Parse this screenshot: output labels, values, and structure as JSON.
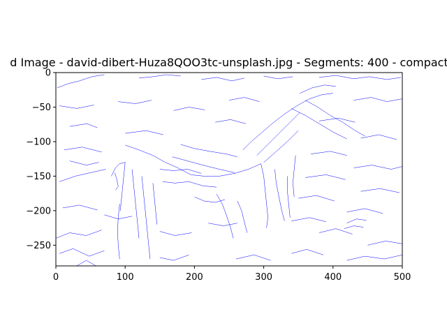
{
  "chart_data": {
    "type": "line",
    "title": "d Image - david-dibert-Huza8QOO3tc-unsplash.jpg - Segments: 400 - compact",
    "xlabel": "",
    "ylabel": "",
    "xlim": [
      0,
      500
    ],
    "ylim": [
      -280,
      0
    ],
    "xticks": [
      0,
      100,
      200,
      300,
      400,
      500
    ],
    "yticks": [
      0,
      -50,
      -100,
      -150,
      -200,
      -250
    ],
    "xtick_labels": [
      "0",
      "100",
      "200",
      "300",
      "400",
      "500"
    ],
    "ytick_labels": [
      "0",
      "−50",
      "−100",
      "−150",
      "−200",
      "−250"
    ],
    "grid": false,
    "line_color": "#0000ff",
    "series": [
      {
        "values": [
          [
            2,
            -22
          ],
          [
            18,
            -16
          ],
          [
            34,
            -12
          ],
          [
            52,
            -6
          ],
          [
            70,
            -3
          ]
        ]
      },
      {
        "values": [
          [
            120,
            -8
          ],
          [
            140,
            -6
          ],
          [
            160,
            -3
          ],
          [
            180,
            -5
          ]
        ]
      },
      {
        "values": [
          [
            210,
            -10
          ],
          [
            232,
            -7
          ],
          [
            254,
            -12
          ],
          [
            272,
            -8
          ]
        ]
      },
      {
        "values": [
          [
            300,
            -5
          ],
          [
            320,
            -9
          ],
          [
            342,
            -6
          ]
        ]
      },
      {
        "values": [
          [
            380,
            -7
          ],
          [
            404,
            -4
          ],
          [
            430,
            -9
          ],
          [
            452,
            -6
          ],
          [
            478,
            -10
          ],
          [
            498,
            -7
          ]
        ]
      },
      {
        "values": [
          [
            5,
            -48
          ],
          [
            30,
            -52
          ],
          [
            55,
            -47
          ]
        ]
      },
      {
        "values": [
          [
            90,
            -42
          ],
          [
            115,
            -45
          ],
          [
            138,
            -40
          ]
        ]
      },
      {
        "values": [
          [
            170,
            -55
          ],
          [
            192,
            -50
          ],
          [
            215,
            -54
          ]
        ]
      },
      {
        "values": [
          [
            430,
            -40
          ],
          [
            455,
            -36
          ],
          [
            478,
            -42
          ],
          [
            500,
            -38
          ]
        ]
      },
      {
        "values": [
          [
            20,
            -78
          ],
          [
            45,
            -74
          ],
          [
            60,
            -80
          ]
        ]
      },
      {
        "values": [
          [
            100,
            -88
          ],
          [
            130,
            -84
          ],
          [
            155,
            -90
          ]
        ]
      },
      {
        "values": [
          [
            380,
            -70
          ],
          [
            408,
            -66
          ],
          [
            432,
            -72
          ]
        ]
      },
      {
        "values": [
          [
            440,
            -95
          ],
          [
            466,
            -90
          ],
          [
            492,
            -97
          ]
        ]
      },
      {
        "values": [
          [
            12,
            -112
          ],
          [
            38,
            -108
          ],
          [
            66,
            -115
          ]
        ]
      },
      {
        "values": [
          [
            368,
            -118
          ],
          [
            396,
            -114
          ],
          [
            420,
            -120
          ]
        ]
      },
      {
        "values": [
          [
            430,
            -138
          ],
          [
            456,
            -134
          ],
          [
            484,
            -140
          ],
          [
            500,
            -136
          ]
        ]
      },
      {
        "values": [
          [
            5,
            -158
          ],
          [
            28,
            -150
          ],
          [
            50,
            -145
          ],
          [
            72,
            -140
          ]
        ]
      },
      {
        "values": [
          [
            360,
            -152
          ],
          [
            390,
            -148
          ],
          [
            418,
            -155
          ]
        ]
      },
      {
        "values": [
          [
            440,
            -172
          ],
          [
            468,
            -168
          ],
          [
            496,
            -174
          ]
        ]
      },
      {
        "values": [
          [
            10,
            -196
          ],
          [
            34,
            -192
          ],
          [
            60,
            -199
          ]
        ]
      },
      {
        "values": [
          [
            350,
            -182
          ],
          [
            376,
            -178
          ],
          [
            402,
            -186
          ]
        ]
      },
      {
        "values": [
          [
            420,
            -202
          ],
          [
            446,
            -197
          ],
          [
            472,
            -204
          ]
        ]
      },
      {
        "values": [
          [
            340,
            -215
          ],
          [
            366,
            -210
          ],
          [
            390,
            -216
          ]
        ]
      },
      {
        "values": [
          [
            0,
            -240
          ],
          [
            20,
            -232
          ],
          [
            44,
            -236
          ],
          [
            66,
            -228
          ]
        ]
      },
      {
        "values": [
          [
            380,
            -232
          ],
          [
            404,
            -226
          ],
          [
            428,
            -234
          ]
        ]
      },
      {
        "values": [
          [
            450,
            -250
          ],
          [
            476,
            -244
          ],
          [
            500,
            -248
          ]
        ]
      },
      {
        "values": [
          [
            5,
            -262
          ],
          [
            25,
            -255
          ],
          [
            48,
            -266
          ],
          [
            70,
            -258
          ]
        ]
      },
      {
        "values": [
          [
            340,
            -262
          ],
          [
            362,
            -256
          ],
          [
            386,
            -264
          ]
        ]
      },
      {
        "values": [
          [
            420,
            -272
          ],
          [
            446,
            -266
          ],
          [
            474,
            -270
          ],
          [
            500,
            -264
          ]
        ]
      },
      {
        "values": [
          [
            30,
            -280
          ],
          [
            44,
            -272
          ],
          [
            58,
            -280
          ]
        ]
      },
      {
        "values": [
          [
            150,
            -268
          ],
          [
            170,
            -272
          ],
          [
            192,
            -264
          ]
        ]
      },
      {
        "values": [
          [
            260,
            -270
          ],
          [
            286,
            -264
          ],
          [
            310,
            -272
          ]
        ]
      },
      {
        "values": [
          [
            100,
            -105
          ],
          [
            120,
            -112
          ],
          [
            140,
            -120
          ],
          [
            158,
            -130
          ],
          [
            176,
            -138
          ],
          [
            195,
            -148
          ],
          [
            214,
            -150
          ]
        ]
      },
      {
        "values": [
          [
            180,
            -104
          ],
          [
            200,
            -110
          ],
          [
            222,
            -114
          ],
          [
            246,
            -118
          ],
          [
            262,
            -122
          ]
        ]
      },
      {
        "values": [
          [
            168,
            -122
          ],
          [
            190,
            -128
          ],
          [
            212,
            -134
          ],
          [
            236,
            -140
          ],
          [
            258,
            -145
          ]
        ]
      },
      {
        "values": [
          [
            214,
            -150
          ],
          [
            236,
            -150
          ],
          [
            258,
            -146
          ],
          [
            278,
            -140
          ],
          [
            296,
            -132
          ]
        ]
      },
      {
        "values": [
          [
            270,
            -112
          ],
          [
            282,
            -100
          ],
          [
            296,
            -88
          ],
          [
            312,
            -74
          ],
          [
            330,
            -60
          ]
        ]
      },
      {
        "values": [
          [
            290,
            -120
          ],
          [
            306,
            -104
          ],
          [
            322,
            -88
          ],
          [
            338,
            -72
          ],
          [
            352,
            -58
          ]
        ]
      },
      {
        "values": [
          [
            300,
            -130
          ],
          [
            316,
            -116
          ],
          [
            334,
            -100
          ],
          [
            350,
            -84
          ]
        ]
      },
      {
        "values": [
          [
            330,
            -60
          ],
          [
            348,
            -48
          ],
          [
            366,
            -38
          ],
          [
            384,
            -32
          ],
          [
            400,
            -30
          ]
        ]
      },
      {
        "values": [
          [
            360,
            -40
          ],
          [
            378,
            -50
          ],
          [
            396,
            -62
          ],
          [
            414,
            -72
          ],
          [
            432,
            -84
          ],
          [
            446,
            -92
          ]
        ]
      },
      {
        "values": [
          [
            340,
            -52
          ],
          [
            360,
            -62
          ],
          [
            380,
            -74
          ],
          [
            400,
            -86
          ],
          [
            420,
            -96
          ]
        ]
      },
      {
        "values": [
          [
            352,
            -30
          ],
          [
            370,
            -22
          ],
          [
            388,
            -18
          ],
          [
            404,
            -20
          ]
        ]
      },
      {
        "values": [
          [
            296,
            -132
          ],
          [
            300,
            -150
          ],
          [
            302,
            -170
          ],
          [
            304,
            -190
          ],
          [
            306,
            -210
          ],
          [
            304,
            -225
          ]
        ]
      },
      {
        "values": [
          [
            316,
            -140
          ],
          [
            318,
            -160
          ],
          [
            322,
            -180
          ],
          [
            326,
            -200
          ],
          [
            330,
            -215
          ]
        ]
      },
      {
        "values": [
          [
            334,
            -150
          ],
          [
            334,
            -170
          ],
          [
            336,
            -190
          ],
          [
            338,
            -210
          ]
        ]
      },
      {
        "values": [
          [
            346,
            -120
          ],
          [
            344,
            -140
          ],
          [
            342,
            -160
          ],
          [
            344,
            -180
          ]
        ]
      },
      {
        "values": [
          [
            100,
            -130
          ],
          [
            98,
            -150
          ],
          [
            96,
            -170
          ],
          [
            94,
            -190
          ],
          [
            93,
            -200
          ]
        ]
      },
      {
        "values": [
          [
            110,
            -140
          ],
          [
            112,
            -160
          ],
          [
            114,
            -180
          ],
          [
            116,
            -200
          ],
          [
            118,
            -220
          ],
          [
            120,
            -240
          ]
        ]
      },
      {
        "values": [
          [
            124,
            -150
          ],
          [
            126,
            -170
          ],
          [
            128,
            -190
          ],
          [
            130,
            -210
          ],
          [
            132,
            -230
          ],
          [
            134,
            -250
          ],
          [
            136,
            -270
          ]
        ]
      },
      {
        "values": [
          [
            92,
            -190
          ],
          [
            90,
            -210
          ],
          [
            89,
            -230
          ],
          [
            90,
            -250
          ],
          [
            92,
            -270
          ]
        ]
      },
      {
        "values": [
          [
            140,
            -160
          ],
          [
            142,
            -180
          ],
          [
            144,
            -200
          ],
          [
            146,
            -220
          ]
        ]
      },
      {
        "values": [
          [
            80,
            -150
          ],
          [
            86,
            -138
          ],
          [
            92,
            -132
          ],
          [
            100,
            -130
          ]
        ]
      },
      {
        "values": [
          [
            85,
            -145
          ],
          [
            88,
            -155
          ],
          [
            90,
            -165
          ],
          [
            86,
            -170
          ]
        ]
      },
      {
        "values": [
          [
            150,
            -140
          ],
          [
            170,
            -142
          ],
          [
            190,
            -140
          ],
          [
            210,
            -146
          ]
        ]
      },
      {
        "values": [
          [
            154,
            -158
          ],
          [
            172,
            -160
          ],
          [
            192,
            -158
          ],
          [
            212,
            -164
          ],
          [
            232,
            -166
          ]
        ]
      },
      {
        "values": [
          [
            200,
            -180
          ],
          [
            214,
            -186
          ],
          [
            230,
            -188
          ],
          [
            244,
            -184
          ]
        ]
      },
      {
        "values": [
          [
            232,
            -176
          ],
          [
            240,
            -190
          ],
          [
            246,
            -206
          ],
          [
            252,
            -224
          ],
          [
            256,
            -240
          ]
        ]
      },
      {
        "values": [
          [
            262,
            -186
          ],
          [
            268,
            -200
          ],
          [
            272,
            -216
          ],
          [
            276,
            -232
          ]
        ]
      },
      {
        "values": [
          [
            420,
            -218
          ],
          [
            434,
            -212
          ],
          [
            448,
            -214
          ]
        ]
      },
      {
        "values": [
          [
            416,
            -226
          ],
          [
            430,
            -222
          ],
          [
            444,
            -224
          ]
        ]
      },
      {
        "values": [
          [
            70,
            -206
          ],
          [
            90,
            -212
          ],
          [
            110,
            -208
          ]
        ]
      },
      {
        "values": [
          [
            150,
            -230
          ],
          [
            172,
            -236
          ],
          [
            196,
            -232
          ]
        ]
      },
      {
        "values": [
          [
            220,
            -218
          ],
          [
            242,
            -222
          ],
          [
            262,
            -218
          ]
        ]
      },
      {
        "values": [
          [
            20,
            -128
          ],
          [
            44,
            -134
          ],
          [
            62,
            -130
          ]
        ]
      },
      {
        "values": [
          [
            250,
            -40
          ],
          [
            272,
            -36
          ],
          [
            294,
            -42
          ]
        ]
      },
      {
        "values": [
          [
            230,
            -72
          ],
          [
            252,
            -68
          ],
          [
            274,
            -74
          ]
        ]
      }
    ]
  }
}
